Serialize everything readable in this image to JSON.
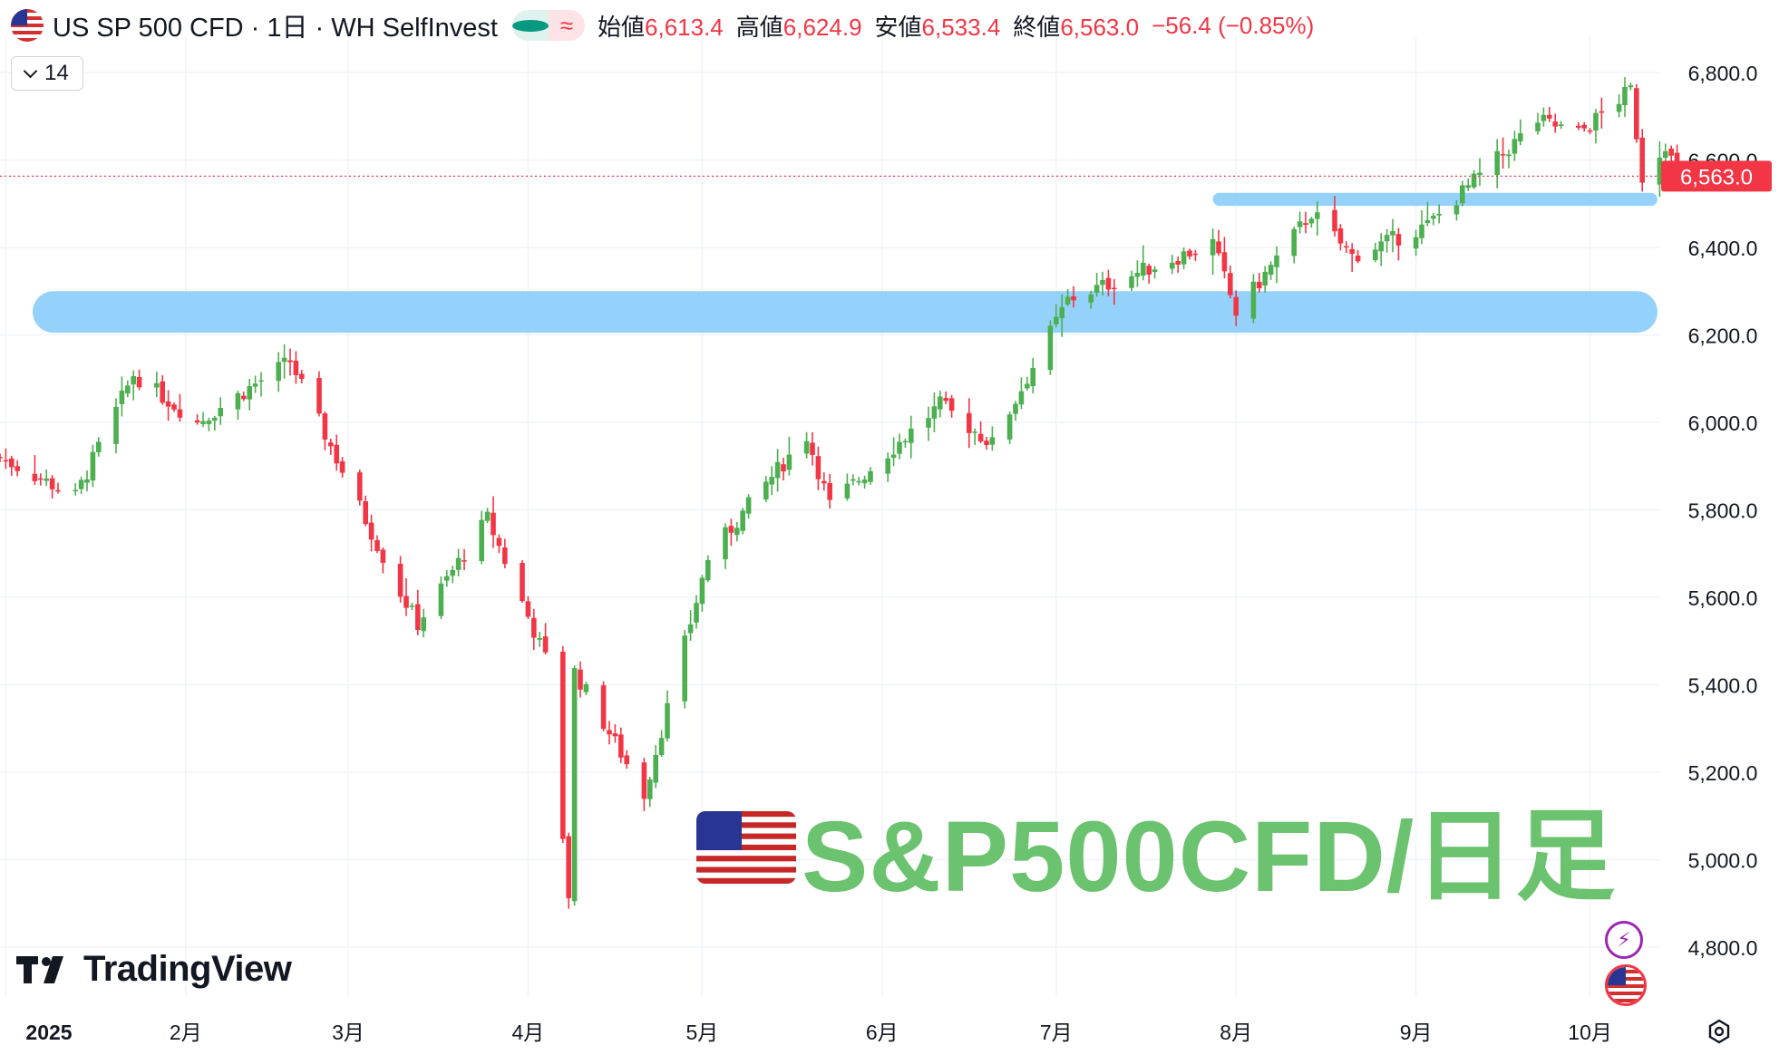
{
  "header": {
    "symbol_label": "US SP 500 CFD · 1日 · WH SelfInvest",
    "pill_b": "≈",
    "open_label": "始値",
    "open_value": "6,613.4",
    "high_label": "高値",
    "high_value": "6,624.9",
    "low_label": "安値",
    "low_value": "6,533.4",
    "close_label": "終値",
    "close_value": "6,563.0",
    "change": "−56.4 (−0.85%)"
  },
  "indicator": {
    "count": "14"
  },
  "logo": {
    "text": "TradingView"
  },
  "overlay": {
    "title": "S&P500CFD/日足"
  },
  "colors": {
    "up": "#4caf50",
    "down": "#f23645",
    "zone": "#8fd0fb",
    "overlay": "#6cc36f",
    "grid": "#f0f3fa"
  },
  "chart_data": {
    "type": "candlestick",
    "ylim": [
      4700,
      6880
    ],
    "y_ticks": [
      {
        "value": 6800,
        "label": "6,800.0"
      },
      {
        "value": 6600,
        "label": "6,600.0"
      },
      {
        "value": 6400,
        "label": "6,400.0"
      },
      {
        "value": 6200,
        "label": "6,200.0"
      },
      {
        "value": 6000,
        "label": "6,000.0"
      },
      {
        "value": 5800,
        "label": "5,800.0"
      },
      {
        "value": 5600,
        "label": "5,600.0"
      },
      {
        "value": 5400,
        "label": "5,400.0"
      },
      {
        "value": 5200,
        "label": "5,200.0"
      },
      {
        "value": 5000,
        "label": "5,000.0"
      },
      {
        "value": 4800,
        "label": "4,800.0"
      }
    ],
    "x_ticks": [
      {
        "label": "2025",
        "bold": true,
        "month": "2025-01"
      },
      {
        "label": "2月",
        "month": "2025-02"
      },
      {
        "label": "3月",
        "month": "2025-03"
      },
      {
        "label": "4月",
        "month": "2025-04"
      },
      {
        "label": "5月",
        "month": "2025-05"
      },
      {
        "label": "6月",
        "month": "2025-06"
      },
      {
        "label": "7月",
        "month": "2025-07"
      },
      {
        "label": "8月",
        "month": "2025-08"
      },
      {
        "label": "9月",
        "month": "2025-09"
      },
      {
        "label": "10月",
        "month": "2025-10"
      }
    ],
    "last_price": 6563.0,
    "last_price_label": "6,563.0",
    "zones": [
      {
        "from": "2024-12-31",
        "to": "2025-10-16",
        "low": 6205,
        "high": 6300
      },
      {
        "from": "2025-07-28",
        "to": "2025-10-16",
        "low": 6495,
        "high": 6525
      }
    ],
    "anchors": [
      [
        "2024-12-31",
        5920
      ],
      [
        "2025-01-13",
        5830
      ],
      [
        "2025-01-23",
        6110
      ],
      [
        "2025-02-03",
        6000
      ],
      [
        "2025-02-19",
        6140
      ],
      [
        "2025-03-10",
        5610
      ],
      [
        "2025-03-13",
        5540
      ],
      [
        "2025-03-25",
        5780
      ],
      [
        "2025-04-04",
        5460
      ],
      [
        "2025-04-08",
        4920
      ],
      [
        "2025-04-09",
        5430
      ],
      [
        "2025-04-21",
        5150
      ],
      [
        "2025-05-02",
        5690
      ],
      [
        "2025-05-12",
        5860
      ],
      [
        "2025-05-19",
        5970
      ],
      [
        "2025-05-23",
        5810
      ],
      [
        "2025-06-11",
        6040
      ],
      [
        "2025-06-20",
        5950
      ],
      [
        "2025-07-03",
        6280
      ],
      [
        "2025-07-28",
        6410
      ],
      [
        "2025-08-01",
        6250
      ],
      [
        "2025-08-14",
        6480
      ],
      [
        "2025-08-21",
        6380
      ],
      [
        "2025-09-03",
        6450
      ],
      [
        "2025-09-22",
        6690
      ],
      [
        "2025-09-29",
        6660
      ],
      [
        "2025-10-08",
        6760
      ],
      [
        "2025-10-10",
        6560
      ],
      [
        "2025-10-14",
        6640
      ],
      [
        "2025-10-16",
        6563
      ]
    ]
  }
}
